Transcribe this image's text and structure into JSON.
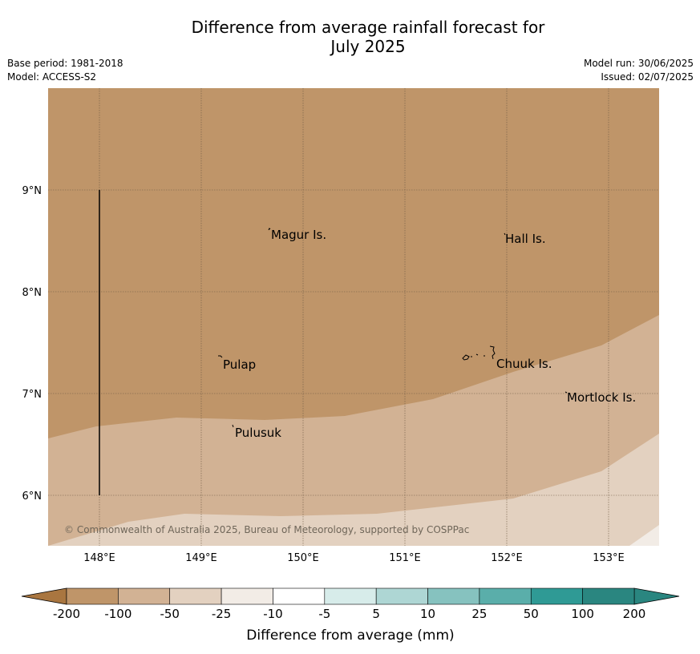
{
  "title_line1": "Difference from average rainfall forecast for",
  "title_line2": "July 2025",
  "base_period": "Base period: 1981-2018",
  "model": "Model: ACCESS-S2",
  "model_run": "Model run: 30/06/2025",
  "issued": "Issued: 02/07/2025",
  "copyright": "© Commonwealth of Australia 2025, Bureau of Meteorology, supported by COSPPac",
  "lat_labels": [
    "9°N",
    "8°N",
    "7°N",
    "6°N"
  ],
  "lon_labels": [
    "148°E",
    "149°E",
    "150°E",
    "151°E",
    "152°E",
    "153°E"
  ],
  "places": [
    "Magur Is.",
    "Hall Is.",
    "Pulap",
    "Chuuk Is.",
    "Mortlock Is.",
    "Pulusuk"
  ],
  "colorbar": {
    "ticks": [
      "-200",
      "-100",
      "-50",
      "-25",
      "-10",
      "-5",
      "5",
      "10",
      "25",
      "50",
      "100",
      "200"
    ],
    "colors": [
      "#a97640",
      "#bf9569",
      "#d2b294",
      "#e3d1c0",
      "#f2ece6",
      "#ffffff",
      "#d7ecea",
      "#aed6d4",
      "#86c2bf",
      "#5aaeaa",
      "#2f9a95",
      "#2a8680"
    ],
    "label": "Difference from average (mm)"
  }
}
